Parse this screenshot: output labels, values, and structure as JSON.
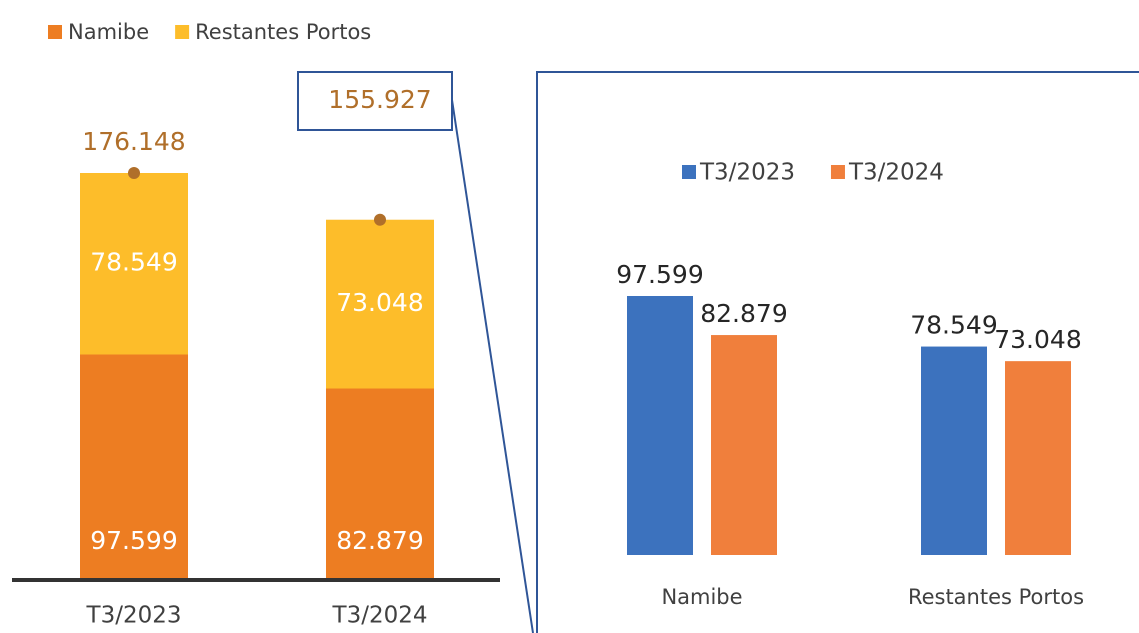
{
  "chart_data": [
    {
      "type": "stacked_bar",
      "categories": [
        "T3/2023",
        "T3/2024"
      ],
      "series": [
        {
          "name": "Namibe",
          "color": "#ed7d22",
          "values": [
            97.599,
            82.879
          ]
        },
        {
          "name": "Restantes Portos",
          "color": "#fdbd2a",
          "values": [
            78.549,
            73.048
          ]
        }
      ],
      "totals": [
        176.148,
        155.927
      ],
      "totals_color": "#b06f2a"
    },
    {
      "type": "bar",
      "categories": [
        "Namibe",
        "Restantes Portos"
      ],
      "series": [
        {
          "name": "T3/2023",
          "color": "#3c72be",
          "values": [
            97.599,
            78.549
          ]
        },
        {
          "name": "T3/2024",
          "color": "#f07f3c",
          "values": [
            82.879,
            73.048
          ]
        }
      ]
    }
  ]
}
